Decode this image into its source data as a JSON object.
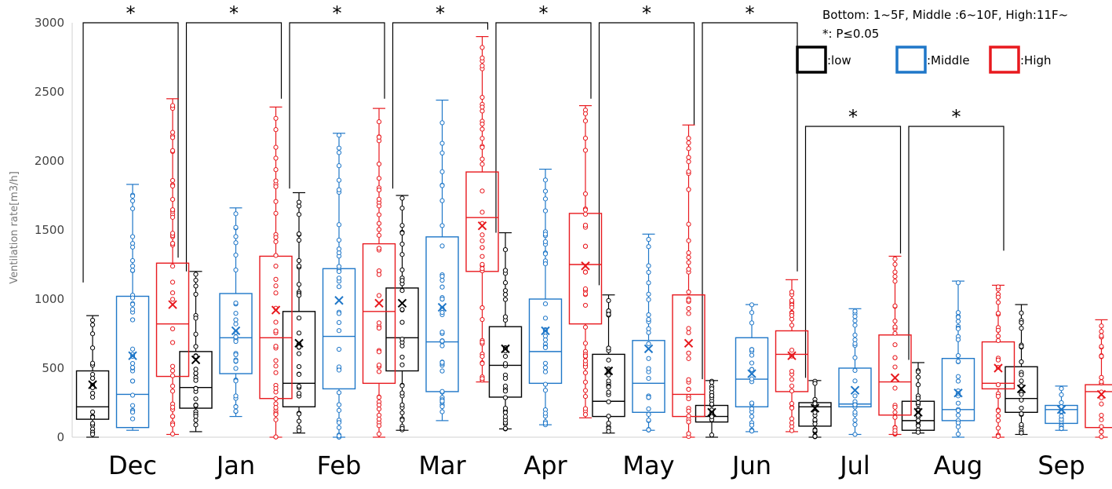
{
  "chart_data": {
    "type": "boxplot",
    "ylabel": "Ventilation rate[m3/h]",
    "ylim": [
      0,
      3000
    ],
    "yticks": [
      0,
      500,
      1000,
      1500,
      2000,
      2500,
      3000
    ],
    "categories": [
      "Dec",
      "Jan",
      "Feb",
      "Mar",
      "Apr",
      "May",
      "Jun",
      "Jul",
      "Aug",
      "Sep"
    ],
    "legend_note": "Bottom: 1~5F, Middle :6~10F, High:11F~",
    "significance_note": "*: P≤0.05",
    "significance_symbol": "*",
    "series": [
      {
        "name": ":low",
        "color": "#000000",
        "boxes": [
          {
            "min": 0,
            "q1": 130,
            "median": 220,
            "q3": 480,
            "max": 880,
            "mean": 380
          },
          {
            "min": 40,
            "q1": 210,
            "median": 360,
            "q3": 620,
            "max": 1200,
            "mean": 560
          },
          {
            "min": 30,
            "q1": 220,
            "median": 390,
            "q3": 910,
            "max": 1770,
            "mean": 680
          },
          {
            "min": 50,
            "q1": 480,
            "median": 720,
            "q3": 1080,
            "max": 1750,
            "mean": 970
          },
          {
            "min": 60,
            "q1": 290,
            "median": 520,
            "q3": 800,
            "max": 1480,
            "mean": 640
          },
          {
            "min": 30,
            "q1": 150,
            "median": 260,
            "q3": 600,
            "max": 1030,
            "mean": 480
          },
          {
            "min": 0,
            "q1": 110,
            "median": 150,
            "q3": 230,
            "max": 410,
            "mean": 180
          },
          {
            "min": 0,
            "q1": 80,
            "median": 220,
            "q3": 250,
            "max": 410,
            "mean": 210
          },
          {
            "min": 30,
            "q1": 50,
            "median": 120,
            "q3": 260,
            "max": 540,
            "mean": 180
          },
          {
            "min": 20,
            "q1": 180,
            "median": 280,
            "q3": 510,
            "max": 960,
            "mean": 350
          }
        ]
      },
      {
        "name": ":Middle",
        "color": "#1f77c8",
        "boxes": [
          {
            "min": 50,
            "q1": 70,
            "median": 310,
            "q3": 1020,
            "max": 1830,
            "mean": 590
          },
          {
            "min": 150,
            "q1": 460,
            "median": 720,
            "q3": 1040,
            "max": 1660,
            "mean": 770
          },
          {
            "min": 0,
            "q1": 350,
            "median": 730,
            "q3": 1220,
            "max": 2200,
            "mean": 990
          },
          {
            "min": 120,
            "q1": 330,
            "median": 690,
            "q3": 1450,
            "max": 2440,
            "mean": 940
          },
          {
            "min": 90,
            "q1": 390,
            "median": 620,
            "q3": 1000,
            "max": 1940,
            "mean": 770
          },
          {
            "min": 50,
            "q1": 180,
            "median": 390,
            "q3": 700,
            "max": 1470,
            "mean": 640
          },
          {
            "min": 40,
            "q1": 220,
            "median": 420,
            "q3": 720,
            "max": 960,
            "mean": 460
          },
          {
            "min": 20,
            "q1": 220,
            "median": 240,
            "q3": 500,
            "max": 930,
            "mean": 340
          },
          {
            "min": 0,
            "q1": 120,
            "median": 200,
            "q3": 570,
            "max": 1130,
            "mean": 320
          },
          {
            "min": 50,
            "q1": 100,
            "median": 200,
            "q3": 230,
            "max": 370,
            "mean": 200
          }
        ]
      },
      {
        "name": ":High",
        "color": "#e8191e",
        "boxes": [
          {
            "min": 20,
            "q1": 440,
            "median": 820,
            "q3": 1260,
            "max": 2450,
            "mean": 960
          },
          {
            "min": 0,
            "q1": 280,
            "median": 720,
            "q3": 1310,
            "max": 2390,
            "mean": 920
          },
          {
            "min": 0,
            "q1": 390,
            "median": 910,
            "q3": 1400,
            "max": 2380,
            "mean": 970
          },
          {
            "min": 400,
            "q1": 1200,
            "median": 1590,
            "q3": 1920,
            "max": 2900,
            "mean": 1530
          },
          {
            "min": 140,
            "q1": 820,
            "median": 1250,
            "q3": 1620,
            "max": 2400,
            "mean": 1240
          },
          {
            "min": 0,
            "q1": 150,
            "median": 310,
            "q3": 1030,
            "max": 2260,
            "mean": 680
          },
          {
            "min": 40,
            "q1": 330,
            "median": 600,
            "q3": 770,
            "max": 1140,
            "mean": 590
          },
          {
            "min": 20,
            "q1": 160,
            "median": 400,
            "q3": 740,
            "max": 1310,
            "mean": 430
          },
          {
            "min": 0,
            "q1": 350,
            "median": 390,
            "q3": 690,
            "max": 1100,
            "mean": 500
          },
          {
            "min": 0,
            "q1": 70,
            "median": 330,
            "q3": 380,
            "max": 850,
            "mean": 310
          }
        ]
      }
    ],
    "significance": [
      {
        "category": "Dec",
        "from": ":low",
        "to": ":High",
        "left_tip": 1120,
        "right_tip": 1300,
        "bar_y": 3000
      },
      {
        "category": "Jan",
        "from": ":low",
        "to": ":High",
        "left_tip": 1200,
        "right_tip": 2450,
        "bar_y": 3000
      },
      {
        "category": "Feb",
        "from": ":low",
        "to": ":High",
        "left_tip": 1800,
        "right_tip": 2450,
        "bar_y": 3000
      },
      {
        "category": "Mar",
        "from": ":low",
        "to": ":High",
        "left_tip": 1800,
        "right_tip": 2950,
        "bar_y": 3000
      },
      {
        "category": "Apr",
        "from": ":low",
        "to": ":High",
        "left_tip": 1480,
        "right_tip": 2450,
        "bar_y": 3000
      },
      {
        "category": "May",
        "from": ":low",
        "to": ":High",
        "left_tip": 1100,
        "right_tip": 2260,
        "bar_y": 3000
      },
      {
        "category": "Jun",
        "from": ":low",
        "to": ":High",
        "left_tip": 420,
        "right_tip": 1200,
        "bar_y": 3000
      },
      {
        "category": "Jul",
        "from": ":low",
        "to": ":High",
        "left_tip": 430,
        "right_tip": 1330,
        "bar_y": 2250
      },
      {
        "category": "Aug",
        "from": ":low",
        "to": ":High",
        "left_tip": 560,
        "right_tip": 1350,
        "bar_y": 2250
      }
    ]
  }
}
